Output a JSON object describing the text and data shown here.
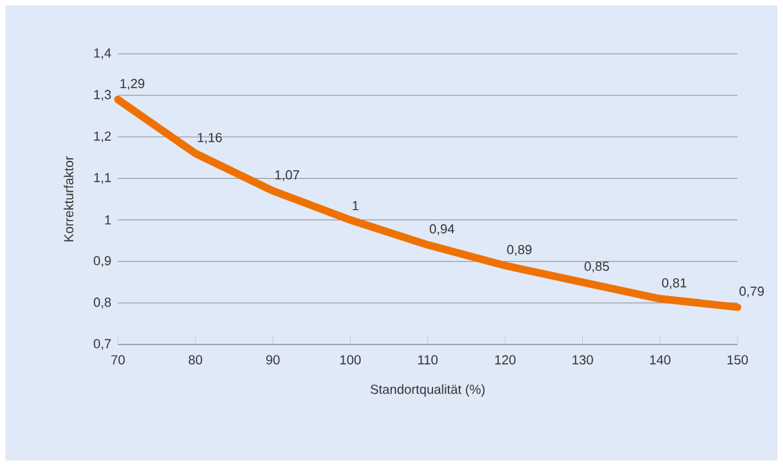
{
  "chart_data": {
    "type": "line",
    "xlabel": "Standortqualität (%)",
    "ylabel": "Korrekturfaktor",
    "x": [
      70,
      80,
      90,
      100,
      110,
      120,
      130,
      140,
      150
    ],
    "values": [
      1.29,
      1.16,
      1.07,
      1,
      0.94,
      0.89,
      0.85,
      0.81,
      0.79
    ],
    "value_labels": [
      "1,29",
      "1,16",
      "1,07",
      "1",
      "0,94",
      "0,89",
      "0,85",
      "0,81",
      "0,79"
    ],
    "color": "#ee7203",
    "xlim": [
      70,
      150
    ],
    "xticks": [
      70,
      80,
      90,
      100,
      110,
      120,
      130,
      140,
      150
    ],
    "ylim": [
      0.7,
      1.4
    ],
    "yticks": [
      {
        "value": 0.7,
        "label": "0,7"
      },
      {
        "value": 0.8,
        "label": "0,8"
      },
      {
        "value": 0.9,
        "label": "0,9"
      },
      {
        "value": 1,
        "label": "1"
      },
      {
        "value": 1.1,
        "label": "1,1"
      },
      {
        "value": 1.2,
        "label": "1,2"
      },
      {
        "value": 1.3,
        "label": "1,3"
      },
      {
        "value": 1.4,
        "label": "1,4"
      }
    ],
    "grid": "y",
    "marker": "none",
    "line_style": "solid"
  }
}
